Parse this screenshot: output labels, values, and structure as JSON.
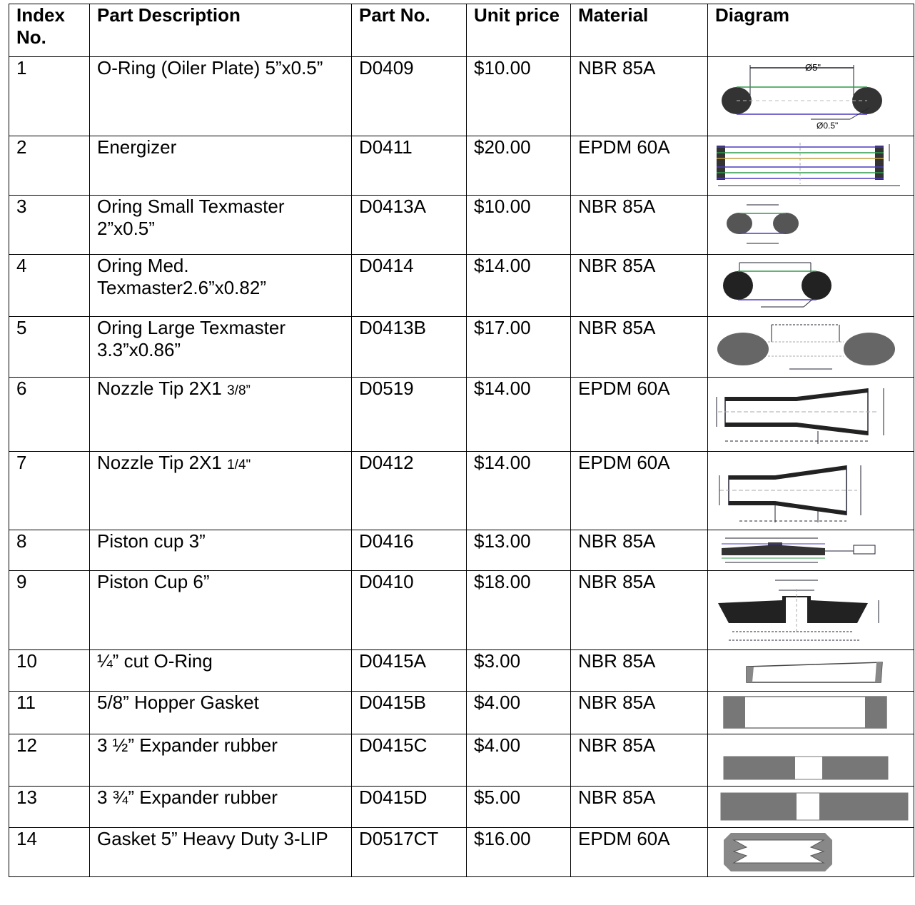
{
  "headers": {
    "index": "Index No.",
    "description": "Part Description",
    "part_no": "Part No.",
    "unit_price": "Unit price",
    "material": "Material",
    "diagram": "Diagram"
  },
  "rows": [
    {
      "index": "1",
      "description": "O-Ring (Oiler Plate) 5”x0.5”",
      "part_no": "D0409",
      "price": "$10.00",
      "material": "NBR 85A",
      "diagram": "o-ring-cross-section",
      "dim_top": "Ø5\"",
      "dim_bottom": "Ø0.5\""
    },
    {
      "index": "2",
      "description": "Energizer",
      "part_no": "D0411",
      "price": "$20.00",
      "material": "EPDM 60A",
      "diagram": "energizer-section"
    },
    {
      "index": "3",
      "description": "Oring Small Texmaster 2”x0.5”",
      "part_no": "D0413A",
      "price": "$10.00",
      "material": "NBR 85A",
      "diagram": "o-ring-cross-section"
    },
    {
      "index": "4",
      "description": "Oring Med. Texmaster2.6”x0.82”",
      "part_no": "D0414",
      "price": "$14.00",
      "material": "NBR 85A",
      "diagram": "o-ring-cross-section"
    },
    {
      "index": "5",
      "description": "Oring Large Texmaster 3.3”x0.86”",
      "part_no": "D0413B",
      "price": "$17.00",
      "material": "NBR 85A",
      "diagram": "o-ring-cross-section"
    },
    {
      "index": "6",
      "description_main": "Nozzle Tip 2X1 ",
      "description_frac": "3/8”",
      "part_no": "D0519",
      "price": "$14.00",
      "material": "EPDM 60A",
      "diagram": "nozzle-tip-section"
    },
    {
      "index": "7",
      "description_main": "Nozzle Tip 2X1 ",
      "description_frac": "1/4\"",
      "part_no": "D0412",
      "price": "$14.00",
      "material": "EPDM 60A",
      "diagram": "nozzle-tip-section"
    },
    {
      "index": "8",
      "description": "Piston cup 3”",
      "part_no": "D0416",
      "price": "$13.00",
      "material": "NBR 85A",
      "diagram": "piston-cup-section"
    },
    {
      "index": "9",
      "description": "Piston Cup 6”",
      "part_no": "D0410",
      "price": "$18.00",
      "material": "NBR 85A",
      "diagram": "piston-cup-section"
    },
    {
      "index": "10",
      "description": "¼” cut O-Ring",
      "part_no": "D0415A",
      "price": "$3.00",
      "material": "NBR 85A",
      "diagram": "cut-o-ring-shape"
    },
    {
      "index": "11",
      "description": "5/8” Hopper Gasket",
      "part_no": "D0415B",
      "price": "$4.00",
      "material": "NBR 85A",
      "diagram": "hopper-gasket-shape"
    },
    {
      "index": "12",
      "description": "3 ½” Expander rubber",
      "part_no": "D0415C",
      "price": "$4.00",
      "material": "NBR 85A",
      "diagram": "expander-rubber-shape"
    },
    {
      "index": "13",
      "description": "3 ¾” Expander rubber",
      "part_no": "D0415D",
      "price": "$5.00",
      "material": "NBR 85A",
      "diagram": "expander-rubber-shape"
    },
    {
      "index": "14",
      "description": "Gasket 5” Heavy Duty 3-LIP",
      "part_no": "D0517CT",
      "price": "$16.00",
      "material": "EPDM 60A",
      "diagram": "three-lip-gasket-shape"
    }
  ]
}
